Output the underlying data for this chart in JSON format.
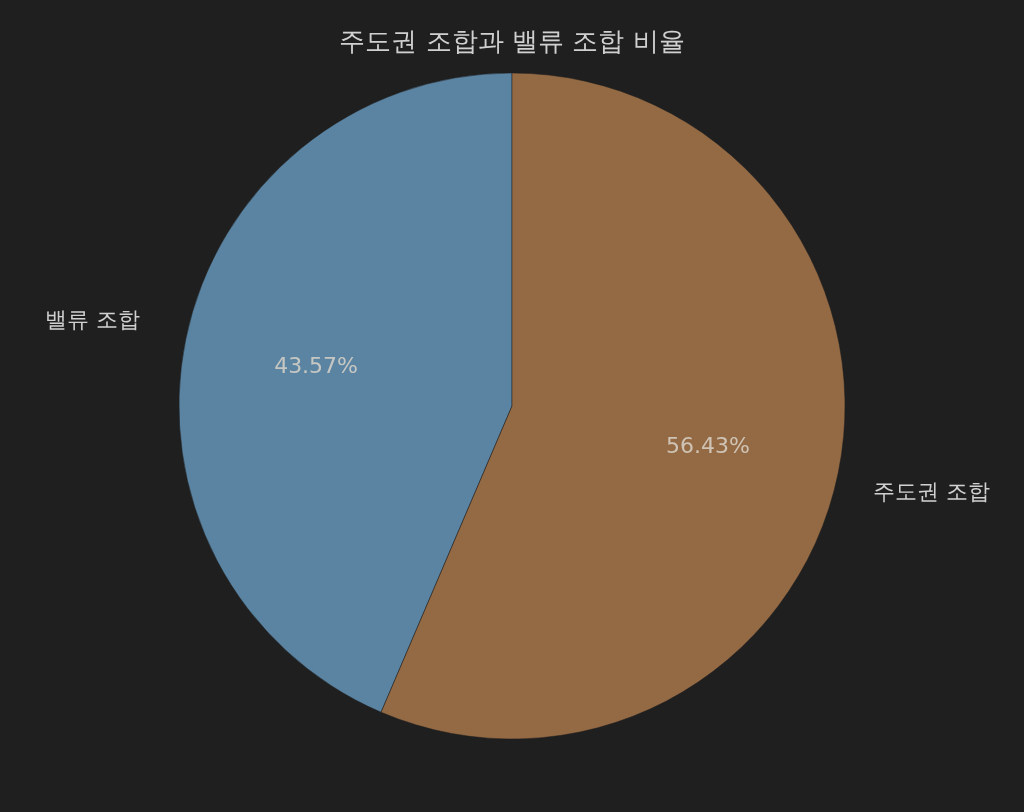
{
  "chart_data": {
    "type": "pie",
    "title": "주도권 조합과 밸류 조합 비율",
    "categories": [
      "밸류 조합",
      "주도권 조합"
    ],
    "values": [
      43.57,
      56.43
    ],
    "colors": [
      "#5b84a3",
      "#946a45"
    ],
    "value_labels": [
      "43.57%",
      "56.43%"
    ],
    "legend": false
  }
}
